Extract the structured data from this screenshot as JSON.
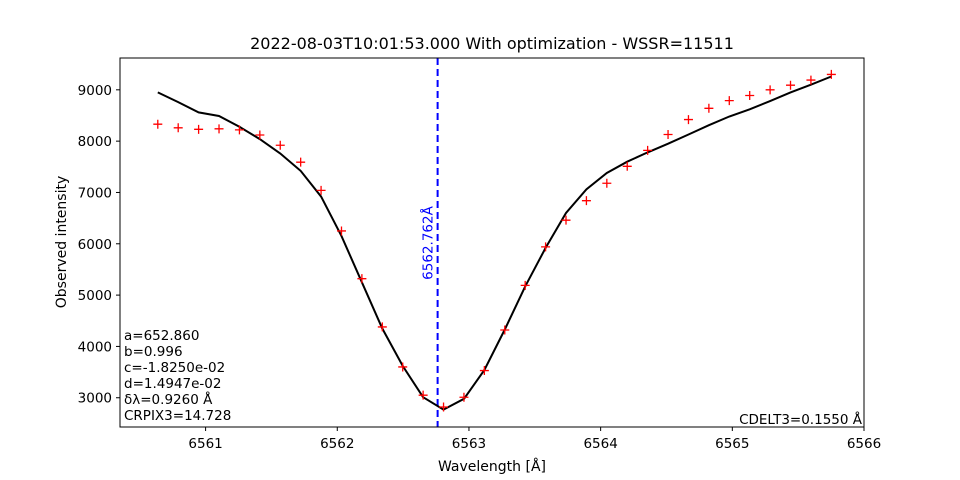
{
  "chart_data": {
    "type": "line",
    "title": "2022-08-03T10:01:53.000 With optimization - WSSR=11511",
    "xlabel": "Wavelength [Å]",
    "ylabel": "Observed intensity",
    "xlim": [
      6560.35,
      6566.0
    ],
    "ylim": [
      2430,
      9620
    ],
    "xticks": [
      6561,
      6562,
      6563,
      6564,
      6565,
      6566
    ],
    "yticks": [
      3000,
      4000,
      5000,
      6000,
      7000,
      8000,
      9000
    ],
    "grid": false,
    "observed": {
      "color": "#ff0000",
      "marker": "+",
      "x": [
        6560.637,
        6560.792,
        6560.947,
        6561.102,
        6561.257,
        6561.412,
        6561.567,
        6561.722,
        6561.877,
        6562.032,
        6562.187,
        6562.342,
        6562.497,
        6562.652,
        6562.807,
        6562.962,
        6563.117,
        6563.272,
        6563.427,
        6563.582,
        6563.737,
        6563.892,
        6564.047,
        6564.202,
        6564.357,
        6564.512,
        6564.667,
        6564.822,
        6564.977,
        6565.132,
        6565.287,
        6565.442,
        6565.597,
        6565.752
      ],
      "y": [
        8330,
        8260,
        8230,
        8240,
        8220,
        8120,
        7920,
        7590,
        7040,
        6250,
        5320,
        4380,
        3600,
        3050,
        2820,
        3010,
        3530,
        4320,
        5190,
        5940,
        6460,
        6840,
        7180,
        7510,
        7820,
        8130,
        8420,
        8640,
        8790,
        8890,
        9000,
        9090,
        9190,
        9300
      ]
    },
    "fit": {
      "color": "#000000",
      "x": [
        6560.637,
        6560.792,
        6560.947,
        6561.102,
        6561.257,
        6561.412,
        6561.567,
        6561.722,
        6561.877,
        6562.032,
        6562.187,
        6562.342,
        6562.497,
        6562.652,
        6562.807,
        6562.962,
        6563.117,
        6563.272,
        6563.427,
        6563.582,
        6563.737,
        6563.892,
        6564.047,
        6564.202,
        6564.357,
        6564.512,
        6564.667,
        6564.822,
        6564.977,
        6565.132,
        6565.287,
        6565.442,
        6565.597,
        6565.752
      ],
      "y": [
        8950,
        8760,
        8560,
        8490,
        8280,
        8040,
        7760,
        7420,
        6920,
        6150,
        5250,
        4350,
        3620,
        3010,
        2770,
        2980,
        3540,
        4330,
        5170,
        5920,
        6600,
        7060,
        7380,
        7600,
        7780,
        7950,
        8130,
        8310,
        8480,
        8620,
        8780,
        8950,
        9100,
        9260
      ]
    },
    "center_line": {
      "x": 6562.762,
      "label": "6562.762Å",
      "color": "#0000ff"
    },
    "annotations_left": [
      "a=652.860",
      "b=0.996",
      "c=-1.8250e-02",
      "d=1.4947e-02",
      "δλ=0.9260 Å",
      "CRPIX3=14.728"
    ],
    "annotation_right": "CDELT3=0.1550 Å"
  }
}
